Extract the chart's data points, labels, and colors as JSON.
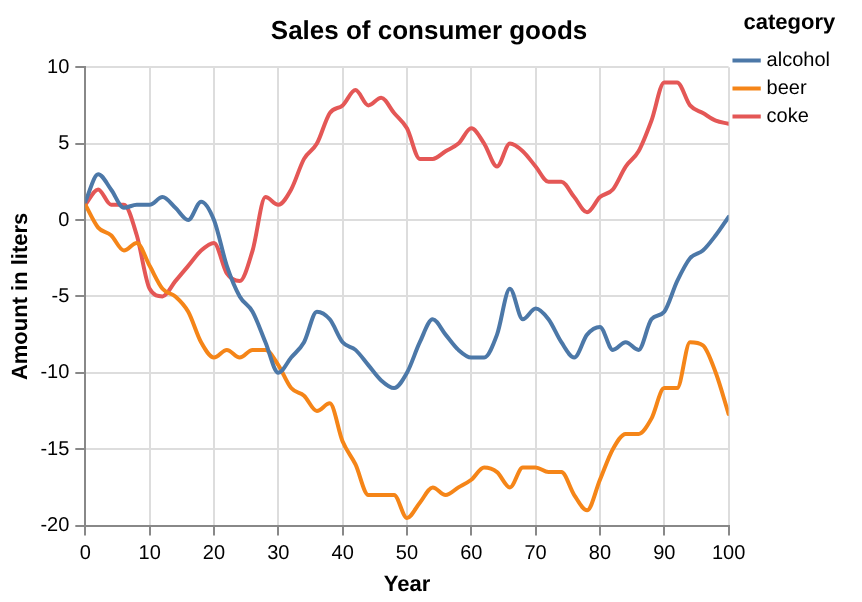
{
  "chart_data": {
    "type": "line",
    "title": "Sales of consumer goods",
    "xlabel": "Year",
    "ylabel": "Amount in liters",
    "legend_title": "category",
    "legend": "right",
    "grid": true,
    "marker": "none",
    "line_style": "solid",
    "xlim": [
      0,
      100
    ],
    "xticks": [
      0,
      10,
      20,
      30,
      40,
      50,
      60,
      70,
      80,
      90,
      100
    ],
    "ylim": [
      -20,
      10
    ],
    "yticks": [
      -20,
      -15,
      -10,
      -5,
      0,
      5,
      10
    ],
    "x": [
      0,
      2,
      4,
      6,
      8,
      10,
      12,
      14,
      16,
      18,
      20,
      22,
      24,
      26,
      28,
      30,
      32,
      34,
      36,
      38,
      40,
      42,
      44,
      46,
      48,
      50,
      52,
      54,
      56,
      58,
      60,
      62,
      64,
      66,
      68,
      70,
      72,
      74,
      76,
      78,
      80,
      82,
      84,
      86,
      88,
      90,
      92,
      94,
      96,
      98,
      100
    ],
    "series": [
      {
        "name": "alcohol",
        "color": "#4c78a8",
        "values": [
          1.2,
          3,
          2,
          0.8,
          1,
          1,
          1.5,
          0.8,
          0,
          1.2,
          0,
          -3,
          -5,
          -6,
          -8,
          -10,
          -9,
          -8,
          -6,
          -6.5,
          -8,
          -8.5,
          -9.5,
          -10.5,
          -11,
          -10,
          -8,
          -6.5,
          -7.5,
          -8.5,
          -9,
          -9,
          -7.5,
          -4.5,
          -6.5,
          -5.8,
          -6.5,
          -8,
          -9,
          -7.5,
          -7,
          -8.5,
          -8,
          -8.5,
          -6.5,
          -6,
          -4,
          -2.5,
          -2,
          -1,
          0.2
        ]
      },
      {
        "name": "beer",
        "color": "#f58518",
        "values": [
          1,
          -0.5,
          -1,
          -2,
          -1.5,
          -3,
          -4.5,
          -5,
          -6,
          -8,
          -9,
          -8.5,
          -9,
          -8.5,
          -8.5,
          -9.5,
          -11,
          -11.5,
          -12.5,
          -12,
          -14.5,
          -16,
          -18,
          -18,
          -18,
          -19.5,
          -18.5,
          -17.5,
          -18,
          -17.5,
          -17,
          -16.2,
          -16.5,
          -17.5,
          -16.2,
          -16.2,
          -16.5,
          -16.5,
          -18,
          -19,
          -17,
          -15,
          -14,
          -14,
          -13,
          -11,
          -11,
          -8,
          -8.2,
          -10,
          -12.7
        ]
      },
      {
        "name": "coke",
        "color": "#e45756",
        "values": [
          1,
          2,
          1,
          1,
          -1,
          -4.5,
          -5,
          -4,
          -3,
          -2,
          -1.5,
          -3.5,
          -4,
          -2,
          1.5,
          1,
          2,
          4,
          5,
          7,
          7.5,
          8.5,
          7.5,
          8,
          7,
          6,
          4,
          4,
          4.5,
          5,
          6,
          5,
          3.5,
          5,
          4.5,
          3.5,
          2.5,
          2.5,
          1.5,
          0.5,
          1.5,
          2,
          3.5,
          4.5,
          6.5,
          9,
          9,
          7.5,
          7,
          6.5,
          6.3
        ]
      }
    ]
  }
}
